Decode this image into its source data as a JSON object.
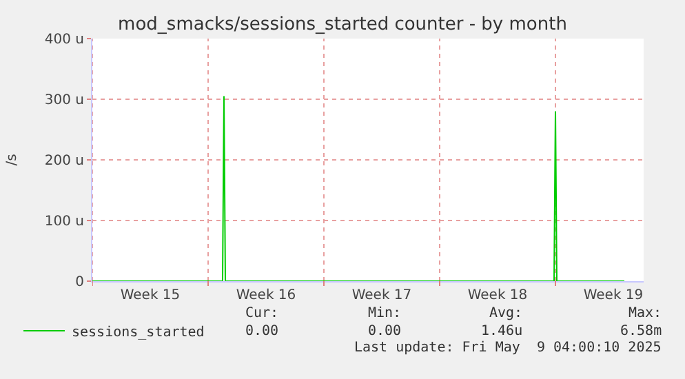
{
  "chart_data": {
    "type": "line",
    "title": "mod_smacks/sessions_started counter - by month",
    "ylabel": "/s",
    "x": [
      "2025-04-07T00:00",
      "2025-04-14T21:00",
      "2025-04-14T23:00",
      "2025-04-15T01:00",
      "2025-05-04T22:00",
      "2025-05-05T00:00",
      "2025-05-05T02:00",
      "2025-05-09T04:00"
    ],
    "series": [
      {
        "name": "sessions_started",
        "color": "#00cc00",
        "values": [
          0,
          0,
          305,
          0,
          0,
          280,
          0,
          0
        ]
      }
    ],
    "xlim": [
      "2025-04-07T00:00",
      "2025-05-10T08:00"
    ],
    "xticks": [
      {
        "value": "2025-04-07T00:00",
        "label": null
      },
      {
        "value": "2025-04-10T12:00",
        "label": "Week 15"
      },
      {
        "value": "2025-04-14T00:00",
        "label": null
      },
      {
        "value": "2025-04-17T12:00",
        "label": "Week 16"
      },
      {
        "value": "2025-04-21T00:00",
        "label": null
      },
      {
        "value": "2025-04-24T12:00",
        "label": "Week 17"
      },
      {
        "value": "2025-04-28T00:00",
        "label": null
      },
      {
        "value": "2025-05-01T12:00",
        "label": "Week 18"
      },
      {
        "value": "2025-05-05T00:00",
        "label": null
      },
      {
        "value": "2025-05-08T12:00",
        "label": "Week 19"
      }
    ],
    "ylim": [
      0,
      400
    ],
    "yticks": [
      0,
      {
        "value": 100,
        "label": "100 u"
      },
      {
        "value": 200,
        "label": "200 u"
      },
      {
        "value": 300,
        "label": "300 u"
      },
      {
        "value": 400,
        "label": "400 u"
      }
    ],
    "grid": true,
    "legend": "bottom left",
    "marker": "none",
    "line_style": "solid",
    "annotations": [
      "Cur:",
      "Min:",
      "Avg:",
      "Max:",
      "0.00",
      "0.00",
      "1.46u",
      "6.58m",
      "Last update: Fri May  9 04:00:10 2025"
    ]
  }
}
